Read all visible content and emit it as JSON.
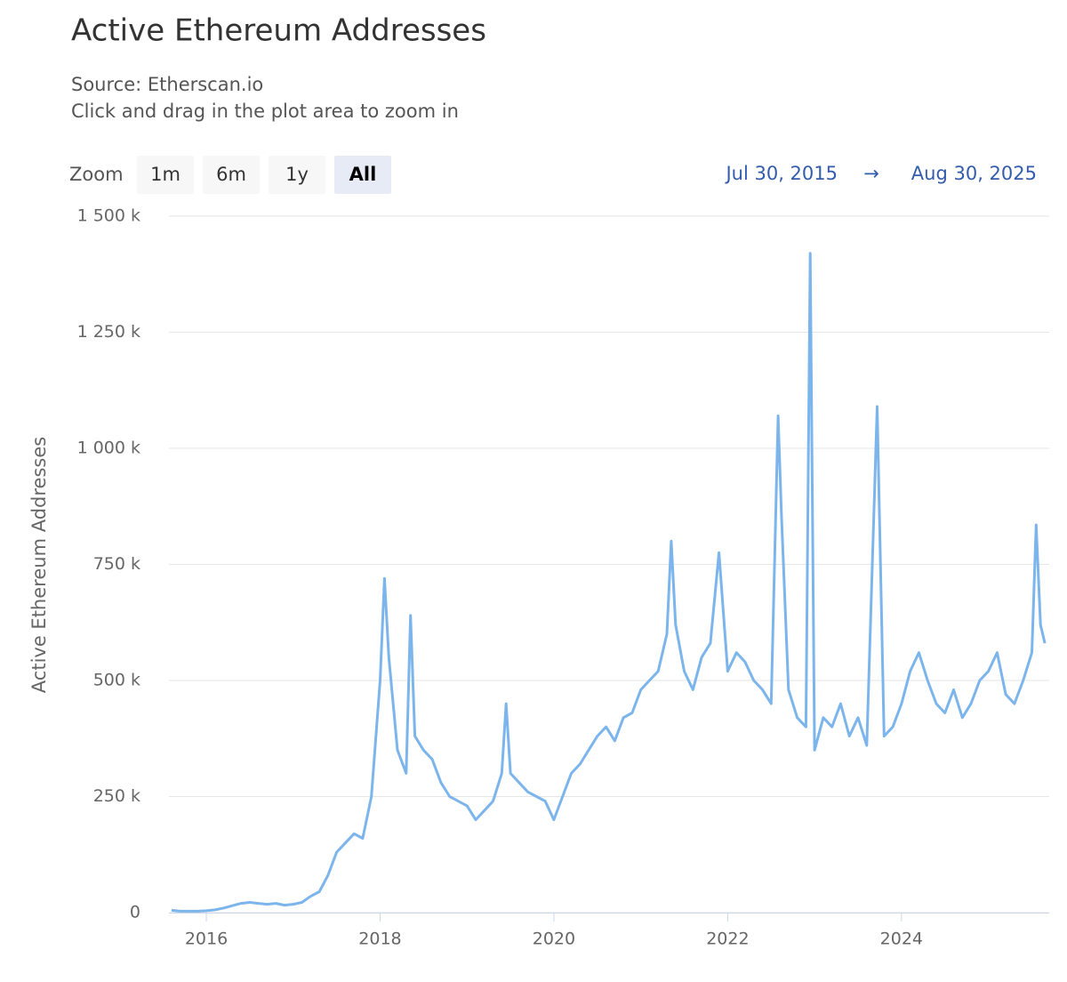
{
  "chart_data": {
    "type": "line",
    "title": "Active Ethereum Addresses",
    "subtitle": [
      "Source: Etherscan.io",
      "Click and drag in the plot area to zoom in"
    ],
    "range_selector": {
      "label": "Zoom",
      "buttons": [
        "1m",
        "6m",
        "1y",
        "All"
      ],
      "selected": 3
    },
    "date_range": {
      "from": "Jul 30, 2015",
      "arrow": "→",
      "to": "Aug 30, 2025"
    },
    "y_label": "Active Ethereum Addresses",
    "color": "#7cb5ec",
    "grid": true,
    "xlim": [
      2015.57,
      2025.7
    ],
    "xticks": [
      2016,
      2018,
      2020,
      2022,
      2024
    ],
    "ylim": [
      0,
      1500
    ],
    "yticks": [
      0,
      {
        "value": 250,
        "label": "250 k"
      },
      {
        "value": 500,
        "label": "500 k"
      },
      {
        "value": 750,
        "label": "750 k"
      },
      {
        "value": 1000,
        "label": "1 000 k"
      },
      {
        "value": 1250,
        "label": "1 250 k"
      },
      {
        "value": 1500,
        "label": "1 500 k"
      }
    ],
    "x": [
      2015.6,
      2015.7,
      2015.8,
      2015.9,
      2016.0,
      2016.1,
      2016.2,
      2016.3,
      2016.4,
      2016.5,
      2016.6,
      2016.7,
      2016.8,
      2016.9,
      2017.0,
      2017.1,
      2017.2,
      2017.3,
      2017.4,
      2017.5,
      2017.6,
      2017.7,
      2017.8,
      2017.9,
      2018.0,
      2018.05,
      2018.1,
      2018.2,
      2018.3,
      2018.35,
      2018.4,
      2018.5,
      2018.6,
      2018.7,
      2018.8,
      2018.9,
      2019.0,
      2019.1,
      2019.2,
      2019.3,
      2019.4,
      2019.45,
      2019.5,
      2019.6,
      2019.7,
      2019.8,
      2019.9,
      2020.0,
      2020.1,
      2020.2,
      2020.3,
      2020.4,
      2020.5,
      2020.6,
      2020.7,
      2020.8,
      2020.9,
      2021.0,
      2021.1,
      2021.2,
      2021.3,
      2021.35,
      2021.4,
      2021.5,
      2021.6,
      2021.7,
      2021.8,
      2021.9,
      2022.0,
      2022.1,
      2022.2,
      2022.3,
      2022.4,
      2022.5,
      2022.58,
      2022.62,
      2022.7,
      2022.8,
      2022.9,
      2022.95,
      2023.0,
      2023.1,
      2023.2,
      2023.3,
      2023.4,
      2023.5,
      2023.6,
      2023.72,
      2023.8,
      2023.9,
      2024.0,
      2024.1,
      2024.2,
      2024.3,
      2024.4,
      2024.5,
      2024.6,
      2024.7,
      2024.8,
      2024.9,
      2025.0,
      2025.1,
      2025.2,
      2025.3,
      2025.4,
      2025.5,
      2025.55,
      2025.6,
      2025.65
    ],
    "values": [
      5,
      3,
      3,
      3,
      4,
      6,
      10,
      15,
      20,
      22,
      20,
      18,
      20,
      16,
      18,
      22,
      35,
      45,
      80,
      130,
      150,
      170,
      160,
      250,
      500,
      720,
      550,
      350,
      300,
      640,
      380,
      350,
      330,
      280,
      250,
      240,
      230,
      200,
      220,
      240,
      300,
      450,
      300,
      280,
      260,
      250,
      240,
      200,
      250,
      300,
      320,
      350,
      380,
      400,
      370,
      420,
      430,
      480,
      500,
      520,
      600,
      800,
      620,
      520,
      480,
      550,
      580,
      775,
      520,
      560,
      540,
      500,
      480,
      450,
      1070,
      850,
      480,
      420,
      400,
      1420,
      350,
      420,
      400,
      450,
      380,
      420,
      360,
      1090,
      380,
      400,
      450,
      520,
      560,
      500,
      450,
      430,
      480,
      420,
      450,
      500,
      520,
      560,
      470,
      450,
      500,
      560,
      835,
      620,
      580
    ]
  }
}
